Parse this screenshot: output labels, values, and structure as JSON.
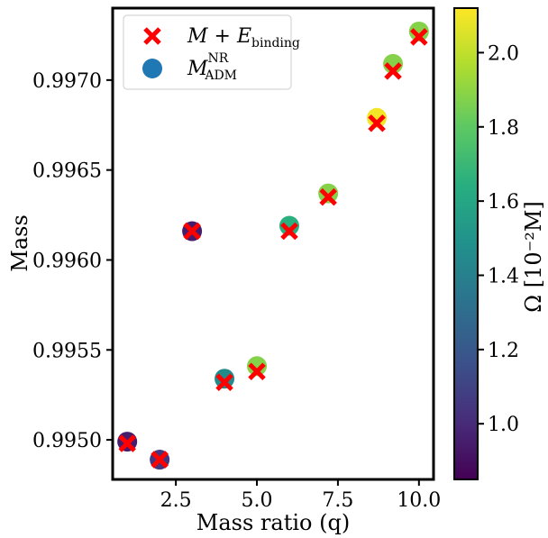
{
  "chart_data": {
    "type": "scatter",
    "xlabel": "Mass ratio (q)",
    "ylabel": "Mass",
    "xlim": [
      0.55,
      10.45
    ],
    "ylim": [
      0.99478,
      0.9974
    ],
    "xticks": [
      2.5,
      5.0,
      7.5,
      10.0
    ],
    "xtick_labels": [
      "2.5",
      "5.0",
      "7.5",
      "10.0"
    ],
    "yticks": [
      0.995,
      0.9955,
      0.996,
      0.9965,
      0.997
    ],
    "ytick_labels": [
      "0.9950",
      "0.9955",
      "0.9960",
      "0.9965",
      "0.9970"
    ],
    "colorbar": {
      "label": "Ω [10⁻²M]",
      "range": [
        0.85,
        2.12
      ],
      "ticks": [
        1.0,
        1.2,
        1.4,
        1.6,
        1.8,
        2.0
      ],
      "tick_labels": [
        "1.0",
        "1.2",
        "1.4",
        "1.6",
        "1.8",
        "2.0"
      ],
      "colormap": "viridis"
    },
    "legend": {
      "placement": "top-left",
      "entries": [
        {
          "marker": "x",
          "color": "#ff0000",
          "label_main": "M + E",
          "label_sub": "binding"
        },
        {
          "marker": "circle",
          "color": "#1f77b4",
          "label_main": "M",
          "label_sub": "ADM",
          "label_sup": "NR"
        }
      ]
    },
    "series": [
      {
        "name": "M + E_binding",
        "marker": "x",
        "color": "#ff0000",
        "x": [
          1.0,
          2.0,
          3.0,
          4.0,
          5.0,
          6.0,
          7.2,
          8.7,
          9.2,
          10.0
        ],
        "y": [
          0.99498,
          0.99489,
          0.99616,
          0.99532,
          0.99538,
          0.99616,
          0.99635,
          0.99676,
          0.99705,
          0.99724
        ]
      },
      {
        "name": "M_ADM^NR",
        "marker": "circle",
        "colored_by": "Ω",
        "x": [
          1.0,
          2.0,
          3.0,
          4.0,
          5.0,
          6.0,
          7.2,
          8.7,
          9.2,
          10.0
        ],
        "y": [
          0.99499,
          0.99489,
          0.99616,
          0.99534,
          0.99541,
          0.99619,
          0.99637,
          0.99679,
          0.99709,
          0.99727
        ],
        "omega": [
          0.95,
          1.05,
          0.95,
          1.45,
          1.88,
          1.65,
          1.88,
          2.1,
          1.88,
          1.88
        ]
      }
    ]
  }
}
